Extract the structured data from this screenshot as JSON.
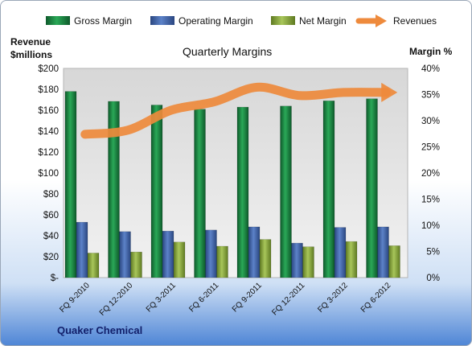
{
  "chart_data": {
    "type": "bar",
    "title": "Quarterly Margins",
    "company": "Quaker Chemical",
    "left_axis": {
      "label_line1": "Revenue",
      "label_line2": "$millions",
      "ylim": [
        0,
        200
      ],
      "step": 20,
      "ticks": [
        "$-",
        "$20",
        "$40",
        "$60",
        "$80",
        "$100",
        "$120",
        "$140",
        "$160",
        "$180",
        "$200"
      ]
    },
    "right_axis": {
      "label": "Margin %",
      "ylim": [
        0,
        40
      ],
      "step": 5,
      "ticks": [
        "0%",
        "5%",
        "10%",
        "15%",
        "20%",
        "25%",
        "30%",
        "35%",
        "40%"
      ]
    },
    "categories": [
      "FQ 9-2010",
      "FQ 12-2010",
      "FQ 3-2011",
      "FQ 6-2011",
      "FQ 9-2011",
      "FQ 12-2011",
      "FQ 3-2012",
      "FQ 6-2012"
    ],
    "series": [
      {
        "name": "Gross Margin",
        "axis": "right",
        "kind": "bar",
        "color": "#1e8a45",
        "values": [
          35.6,
          33.7,
          33.0,
          32.2,
          32.6,
          32.8,
          33.8,
          34.2
        ]
      },
      {
        "name": "Operating Margin",
        "axis": "right",
        "kind": "bar",
        "color": "#3f62a8",
        "values": [
          10.6,
          8.8,
          8.9,
          9.1,
          9.7,
          6.6,
          9.6,
          9.7
        ]
      },
      {
        "name": "Net Margin",
        "axis": "right",
        "kind": "bar",
        "color": "#8cad3c",
        "values": [
          4.7,
          4.9,
          6.8,
          6.0,
          7.3,
          5.9,
          6.9,
          6.1
        ]
      },
      {
        "name": "Revenues",
        "axis": "left",
        "kind": "line",
        "color": "#ee8a3c",
        "values": [
          137,
          141,
          160,
          168,
          182,
          174,
          177,
          177
        ]
      }
    ],
    "legend": [
      "Gross Margin",
      "Operating Margin",
      "Net Margin",
      "Revenues"
    ],
    "legend_position": "top",
    "grid": false
  }
}
